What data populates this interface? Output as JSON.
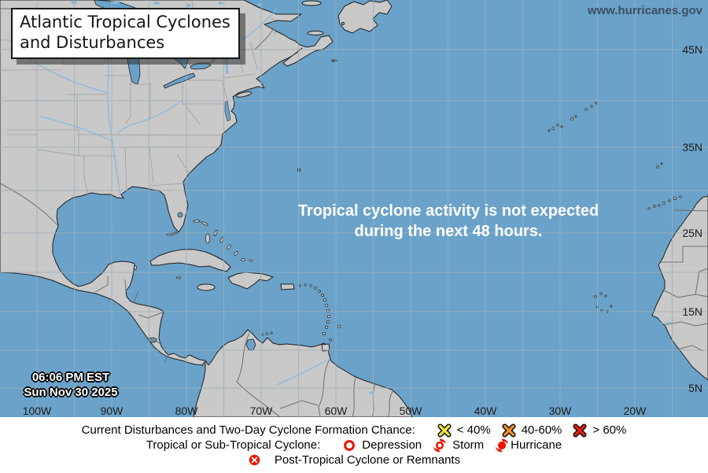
{
  "header": {
    "title_line1": "Atlantic Tropical Cyclones",
    "title_line2": "and Disturbances",
    "website": "www.hurricanes.gov"
  },
  "map": {
    "message_line1": "Tropical cyclone activity is not expected",
    "message_line2": "during the next 48 hours.",
    "timestamp_time": "06:06 PM EST",
    "timestamp_date": "Sun Nov 30 2025",
    "lat_labels": [
      "45N",
      "35N",
      "25N",
      "15N",
      "5N"
    ],
    "lon_labels": [
      "100W",
      "90W",
      "80W",
      "70W",
      "60W",
      "50W",
      "40W",
      "30W",
      "20W"
    ]
  },
  "legend": {
    "row1_label": "Current Disturbances and Two-Day Cyclone Formation Chance:",
    "row1_items": [
      {
        "icon": "x-mark-yellow",
        "label": "< 40%"
      },
      {
        "icon": "x-mark-orange",
        "label": "40-60%"
      },
      {
        "icon": "x-mark-red",
        "label": "> 60%"
      }
    ],
    "row2_label": "Tropical or Sub-Tropical Cyclone:",
    "row2_items": [
      {
        "icon": "depression-circle",
        "label": "Depression"
      },
      {
        "icon": "storm-cyclone",
        "label": "Storm"
      },
      {
        "icon": "hurricane-cyclone",
        "label": "Hurricane"
      }
    ],
    "row3_items": [
      {
        "icon": "post-tropical-circle-x",
        "label": "Post-Tropical Cyclone or Remnants"
      }
    ]
  },
  "colors": {
    "ocean": "#6AA2C9",
    "land": "#C9C9C9",
    "coastline": "#1F1F1F",
    "gridline": "#9FB0BA",
    "river": "#85B9DC",
    "risk_low_yellow": "#F6E93D",
    "risk_medium_orange": "#F79420",
    "risk_high_red": "#EC1C0C",
    "symbol_red": "#ED1500",
    "website_text": "#3E4E62"
  }
}
